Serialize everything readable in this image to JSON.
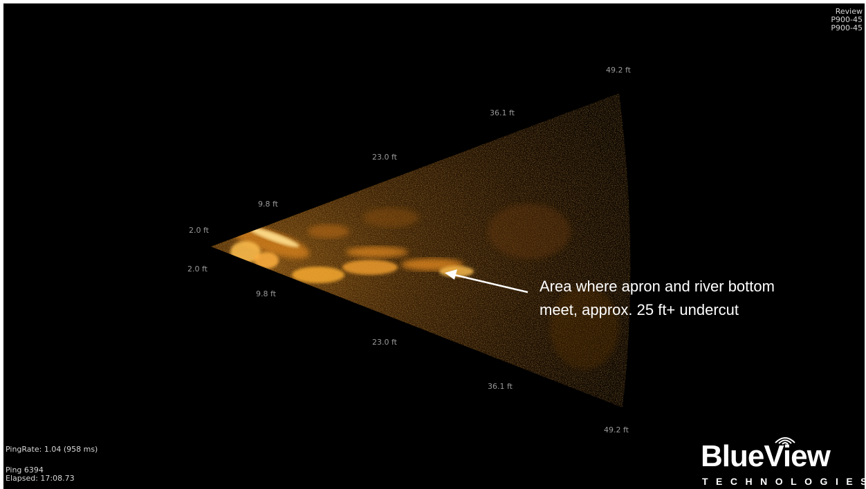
{
  "header": {
    "mode": "Review",
    "model_line1": "P900-45",
    "model_line2": "P900-45"
  },
  "range_labels": {
    "upper": [
      "2.0 ft",
      "9.8 ft",
      "23.0 ft",
      "36.1 ft",
      "49.2 ft"
    ],
    "lower": [
      "2.0 ft",
      "9.8 ft",
      "23.0 ft",
      "36.1 ft",
      "49.2 ft"
    ]
  },
  "annotation": {
    "text": "Area where apron and river bottom meet, approx. 25 ft+ undercut"
  },
  "status": {
    "ping_rate": "PingRate: 1.04 (958 ms)",
    "ping": "Ping 6394",
    "elapsed": "Elapsed: 17:08.73"
  },
  "logo": {
    "name": "BlueView",
    "sub": "TECHNOLOGIES",
    "icon": "wireless-waves-icon"
  },
  "colors": {
    "background": "#000000",
    "sonar_glow": "#ffb030",
    "sonar_dim": "#6a3a08",
    "label_grey": "#9a9a9a"
  }
}
